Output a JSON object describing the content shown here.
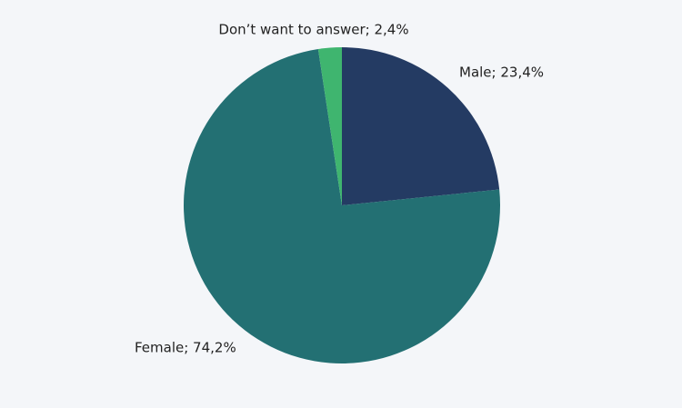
{
  "chart_data": {
    "type": "pie",
    "values": [
      23.4,
      74.2,
      2.4
    ],
    "value_labels": [
      "Male; 23,4%",
      "Female; 74,2%",
      "Don’t want to answer; 2,4%"
    ],
    "colors": [
      "#243b63",
      "#237073",
      "#3fb56f"
    ]
  }
}
